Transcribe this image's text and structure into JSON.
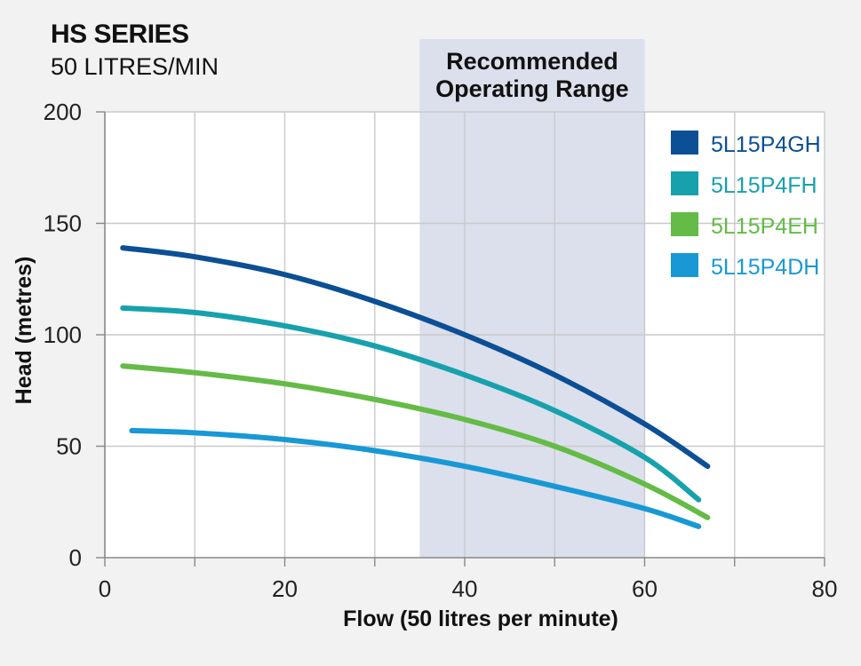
{
  "header": {
    "title": "HS SERIES",
    "subtitle": "50 LITRES/MIN"
  },
  "chart_data": {
    "type": "line",
    "xlabel": "Flow (50 litres per minute)",
    "ylabel": "Head (metres)",
    "xlim": [
      0,
      80
    ],
    "ylim": [
      0,
      200
    ],
    "xticks": [
      0,
      20,
      40,
      60,
      80
    ],
    "yticks": [
      0,
      50,
      100,
      150,
      200
    ],
    "grid": true,
    "legend_position": "top-right",
    "band": {
      "label_line1": "Recommended",
      "label_line2": "Operating Range",
      "x_range": [
        35,
        60
      ],
      "color": "#dcdfec"
    },
    "series": [
      {
        "name": "5L15P4GH",
        "color": "#0b4f95",
        "x": [
          2,
          10,
          20,
          30,
          40,
          50,
          60,
          67
        ],
        "y": [
          139,
          135,
          127,
          115,
          100,
          82,
          60,
          41
        ]
      },
      {
        "name": "5L15P4FH",
        "color": "#16a1ad",
        "x": [
          2,
          10,
          20,
          30,
          40,
          50,
          60,
          66
        ],
        "y": [
          112,
          110,
          104,
          95,
          82,
          66,
          45,
          26
        ]
      },
      {
        "name": "5L15P4EH",
        "color": "#64bb46",
        "x": [
          2,
          10,
          20,
          30,
          40,
          50,
          60,
          67
        ],
        "y": [
          86,
          83,
          78,
          71,
          62,
          50,
          33,
          18
        ]
      },
      {
        "name": "5L15P4DH",
        "color": "#1898d5",
        "x": [
          3,
          10,
          20,
          30,
          40,
          50,
          60,
          66
        ],
        "y": [
          57,
          56,
          53,
          48,
          41,
          32,
          22,
          14
        ]
      }
    ]
  }
}
